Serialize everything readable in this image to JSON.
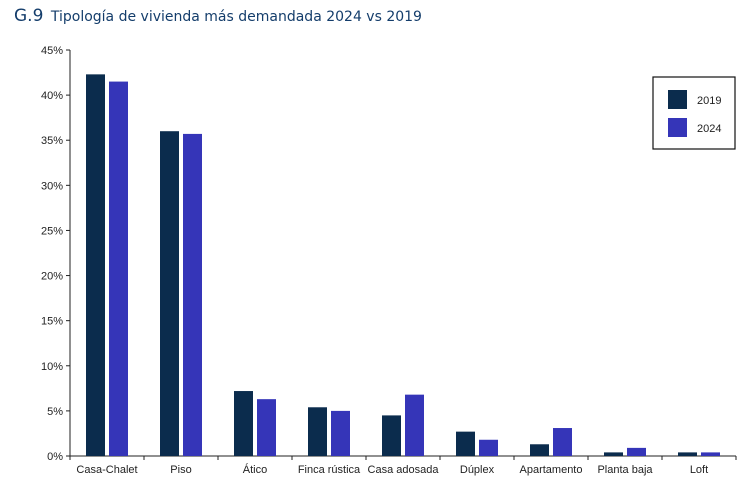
{
  "header": {
    "code": "G.9",
    "title": "Tipología de vivienda más demandada 2024 vs 2019"
  },
  "colors": {
    "s2019": "#0b2c4d",
    "s2024": "#3535b8",
    "axis": "#222222"
  },
  "chart_data": {
    "type": "bar",
    "title": "Tipología de vivienda más demandada 2024 vs 2019",
    "xlabel": "",
    "ylabel": "",
    "ylim": [
      0,
      45
    ],
    "yticks": [
      0,
      5,
      10,
      15,
      20,
      25,
      30,
      35,
      40,
      45
    ],
    "ytick_labels": [
      "0%",
      "5%",
      "10%",
      "15%",
      "20%",
      "25%",
      "30%",
      "35%",
      "40%",
      "45%"
    ],
    "categories": [
      "Casa-Chalet",
      "Piso",
      "Ático",
      "Finca rústica",
      "Casa adosada",
      "Dúplex",
      "Apartamento",
      "Planta baja",
      "Loft"
    ],
    "series": [
      {
        "name": "2019",
        "values": [
          42.3,
          36.0,
          7.2,
          5.4,
          4.5,
          2.7,
          1.3,
          0.4,
          0.4
        ]
      },
      {
        "name": "2024",
        "values": [
          41.5,
          35.7,
          6.3,
          5.0,
          6.8,
          1.8,
          3.1,
          0.9,
          0.4
        ]
      }
    ],
    "legend": {
      "position": "top-right",
      "entries": [
        "2019",
        "2024"
      ]
    }
  }
}
